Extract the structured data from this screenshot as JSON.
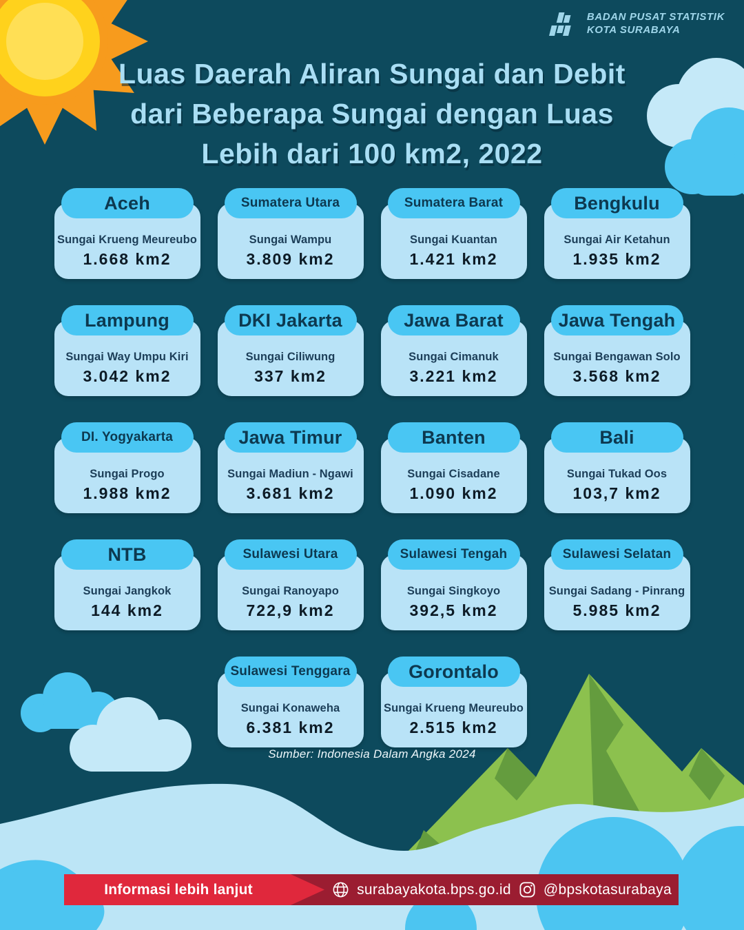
{
  "header": {
    "logo_line1": "BADAN PUSAT STATISTIK",
    "logo_line2": "KOTA SURABAYA",
    "title_line1": "Luas Daerah Aliran Sungai dan Debit",
    "title_line2": "dari Beberapa Sungai dengan Luas",
    "title_line3": "Lebih dari 100 km2, 2022"
  },
  "cards": [
    {
      "province": "Aceh",
      "river": "Sungai Krueng Meureubo",
      "area": "1.668 km2"
    },
    {
      "province": "Sumatera Utara",
      "river": "Sungai Wampu",
      "area": "3.809 km2"
    },
    {
      "province": "Sumatera Barat",
      "river": "Sungai Kuantan",
      "area": "1.421 km2"
    },
    {
      "province": "Bengkulu",
      "river": "Sungai Air Ketahun",
      "area": "1.935 km2"
    },
    {
      "province": "Lampung",
      "river": "Sungai Way Umpu Kiri",
      "area": "3.042 km2"
    },
    {
      "province": "DKI Jakarta",
      "river": "Sungai Ciliwung",
      "area": "337 km2"
    },
    {
      "province": "Jawa Barat",
      "river": "Sungai Cimanuk",
      "area": "3.221 km2"
    },
    {
      "province": "Jawa Tengah",
      "river": "Sungai Bengawan Solo",
      "area": "3.568 km2"
    },
    {
      "province": "DI. Yogyakarta",
      "river": "Sungai Progo",
      "area": "1.988 km2"
    },
    {
      "province": "Jawa Timur",
      "river": "Sungai Madiun - Ngawi",
      "area": "3.681 km2"
    },
    {
      "province": "Banten",
      "river": "Sungai Cisadane",
      "area": "1.090 km2"
    },
    {
      "province": "Bali",
      "river": "Sungai Tukad Oos",
      "area": "103,7 km2"
    },
    {
      "province": "NTB",
      "river": "Sungai Jangkok",
      "area": "144 km2"
    },
    {
      "province": "Sulawesi Utara",
      "river": "Sungai Ranoyapo",
      "area": "722,9 km2"
    },
    {
      "province": "Sulawesi Tengah",
      "river": "Sungai Singkoyo",
      "area": "392,5 km2"
    },
    {
      "province": "Sulawesi Selatan",
      "river": "Sungai Sadang - Pinrang",
      "area": "5.985 km2"
    },
    {
      "province": "Sulawesi Tenggara",
      "river": "Sungai Konaweha",
      "area": "6.381 km2"
    },
    {
      "province": "Gorontalo",
      "river": "Sungai Krueng Meureubo",
      "area": "2.515 km2"
    }
  ],
  "source": "Sumber: Indonesia Dalam Angka 2024",
  "footer": {
    "cta": "Informasi lebih lanjut",
    "website": "surabayakota.bps.go.id",
    "instagram": "@bpskotasurabaya"
  },
  "colors": {
    "background": "#0d4a5d",
    "title_text": "#a9def4",
    "card_pill": "#49c6f3",
    "card_body": "#b9e3f7",
    "card_text_dark": "#0d3950",
    "footer_bar": "#9b1d31",
    "footer_cta": "#e0283c",
    "sun_orange": "#f79b1d",
    "sun_yellow": "#ffd21c",
    "mountain_green": "#8cc14e",
    "mountain_shade": "#649c3e",
    "wave_light": "#bce5f6",
    "wave_medium": "#4cc5f1"
  }
}
